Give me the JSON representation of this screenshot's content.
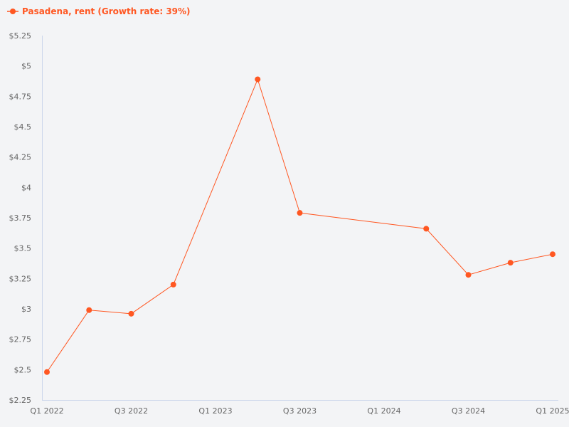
{
  "legend": {
    "label": "Pasadena, rent (Growth rate: 39%)",
    "color": "#ff5722"
  },
  "colors": {
    "series": "#ff5722",
    "axis": "#ccd6eb",
    "tick_text": "#666666",
    "background": "#f3f4f6"
  },
  "chart_data": {
    "type": "line",
    "title": "",
    "xlabel": "",
    "ylabel": "",
    "legend_position": "top-left",
    "grid": false,
    "ylim": [
      2.25,
      5.25
    ],
    "y_ticks": [
      "$2.25",
      "$2.5",
      "$2.75",
      "$3",
      "$3.25",
      "$3.5",
      "$3.75",
      "$4",
      "$4.25",
      "$4.5",
      "$4.75",
      "$5",
      "$5.25"
    ],
    "x_ticks": [
      "Q1 2022",
      "Q3 2022",
      "Q1 2023",
      "Q3 2023",
      "Q1 2024",
      "Q3 2024",
      "Q1 2025"
    ],
    "series": [
      {
        "name": "Pasadena, rent (Growth rate: 39%)",
        "points": [
          {
            "x": "Q1 2022",
            "q": 0,
            "y": 2.48
          },
          {
            "x": "Q2 2022",
            "q": 1,
            "y": 2.99
          },
          {
            "x": "Q3 2022",
            "q": 2,
            "y": 2.96
          },
          {
            "x": "Q4 2022",
            "q": 3,
            "y": 3.2
          },
          {
            "x": "Q2 2023",
            "q": 5,
            "y": 4.89
          },
          {
            "x": "Q3 2023",
            "q": 6,
            "y": 3.79
          },
          {
            "x": "Q2 2024",
            "q": 9,
            "y": 3.66
          },
          {
            "x": "Q3 2024",
            "q": 10,
            "y": 3.28
          },
          {
            "x": "Q4 2024",
            "q": 11,
            "y": 3.38
          },
          {
            "x": "Q1 2025",
            "q": 12,
            "y": 3.45
          }
        ]
      }
    ]
  }
}
